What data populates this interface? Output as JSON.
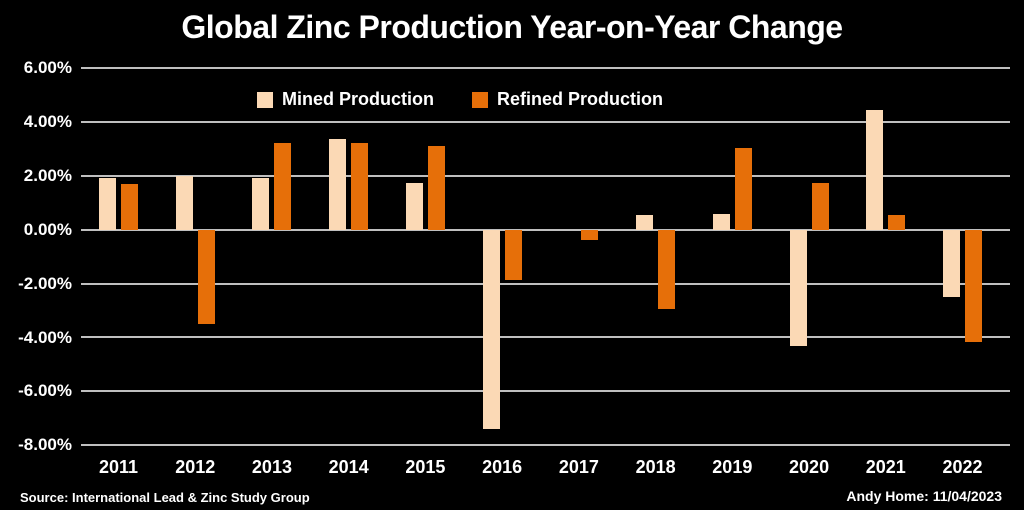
{
  "title": "Global Zinc Production Year-on-Year Change",
  "colors": {
    "background": "#000000",
    "text": "#FFFFFF",
    "gridline": "#BFBFBF",
    "mined": "#FBD9B5",
    "refined": "#E66F09"
  },
  "footer": {
    "source": "Source: International Lead & Zinc Study Group",
    "credit": "Andy Home: 11/04/2023"
  },
  "chart_data": {
    "type": "bar",
    "title": "Global Zinc Production Year-on-Year Change",
    "categories": [
      "2011",
      "2012",
      "2013",
      "2014",
      "2015",
      "2016",
      "2017",
      "2018",
      "2019",
      "2020",
      "2021",
      "2022"
    ],
    "series": [
      {
        "name": "Mined Production",
        "color_key": "mined",
        "values": [
          1.9,
          2.0,
          1.9,
          3.35,
          1.75,
          -7.4,
          0.0,
          0.55,
          0.6,
          -4.3,
          4.45,
          -2.5
        ]
      },
      {
        "name": "Refined Production",
        "color_key": "refined",
        "values": [
          1.7,
          -3.5,
          3.2,
          3.2,
          3.1,
          -1.85,
          -0.4,
          -2.95,
          3.05,
          1.75,
          0.55,
          -4.15
        ]
      }
    ],
    "ylabel": "",
    "xlabel": "",
    "y_ticks": [
      "6.00%",
      "4.00%",
      "2.00%",
      "0.00%",
      "-2.00%",
      "-4.00%",
      "-6.00%",
      "-8.00%"
    ],
    "ylim": [
      -8,
      6
    ],
    "grid": "horizontal",
    "legend_position": "top-center",
    "units": "percent year-on-year change"
  }
}
